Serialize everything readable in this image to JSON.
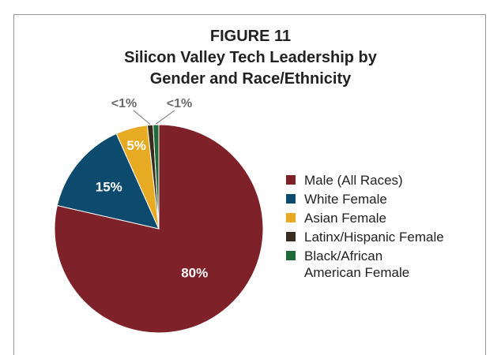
{
  "chart_data": {
    "type": "pie",
    "title": "FIGURE 11",
    "subtitle": "Silicon Valley Tech Leadership by Gender and Race/Ethnicity",
    "categories": [
      "Male (All Races)",
      "White Female",
      "Asian Female",
      "Latinx/Hispanic Female",
      "Black/African American Female"
    ],
    "values": [
      80,
      15,
      5,
      0.9,
      0.9
    ],
    "value_labels": [
      "80%",
      "15%",
      "5%",
      "<1%",
      "<1%"
    ],
    "colors": [
      "#7e2129",
      "#0c4a6e",
      "#e6ab23",
      "#3a2b1f",
      "#1e6a3b"
    ],
    "legend": "right"
  }
}
